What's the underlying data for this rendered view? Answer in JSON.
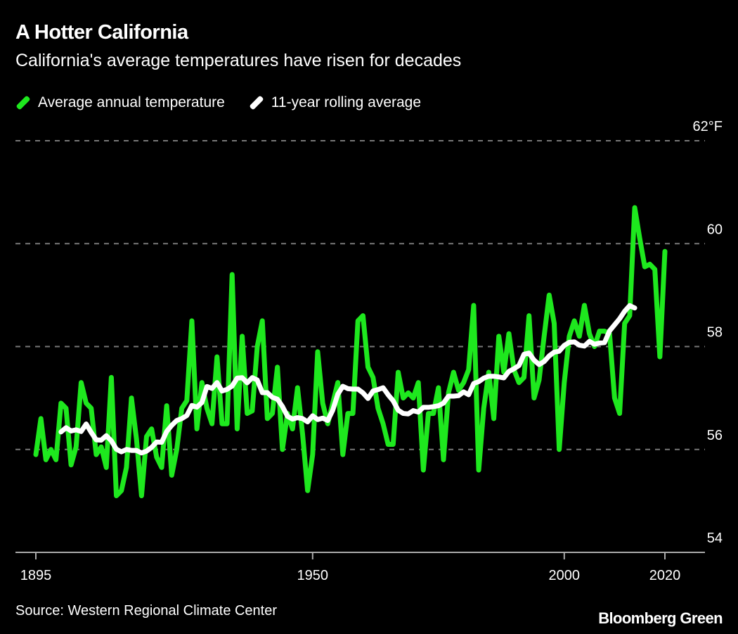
{
  "title": "A Hotter California",
  "subtitle": "California's average temperatures have risen for decades",
  "source": "Source: Western Regional Climate Center",
  "brand": "Bloomberg Green",
  "colors": {
    "annual": "#1ee81e",
    "rolling": "#ffffff",
    "grid": "#777777",
    "background": "#000000"
  },
  "chart_data": {
    "type": "line",
    "title": "A Hotter California",
    "xlabel": "",
    "ylabel": "°F",
    "xlim": [
      1895,
      2020
    ],
    "ylim": [
      54,
      62
    ],
    "x_ticks": [
      {
        "value": 1895,
        "label": "1895"
      },
      {
        "value": 1950,
        "label": "1950"
      },
      {
        "value": 2000,
        "label": "2000"
      },
      {
        "value": 2020,
        "label": "2020"
      }
    ],
    "y_ticks": [
      {
        "value": 62,
        "label": "62°F"
      },
      {
        "value": 60,
        "label": "60"
      },
      {
        "value": 58,
        "label": "58"
      },
      {
        "value": 56,
        "label": "56"
      },
      {
        "value": 54,
        "label": "54"
      }
    ],
    "grid": true,
    "legend_position": "top-left",
    "series": [
      {
        "name": "Average annual temperature",
        "start_year": 1895,
        "values": [
          55.9,
          56.6,
          55.8,
          56.0,
          55.8,
          56.9,
          56.8,
          55.7,
          56.05,
          57.3,
          56.9,
          56.8,
          55.9,
          56.05,
          55.65,
          57.4,
          55.1,
          55.2,
          55.65,
          57.0,
          56.2,
          55.1,
          56.25,
          56.4,
          55.85,
          55.65,
          56.85,
          55.5,
          56.0,
          56.8,
          56.95,
          58.5,
          56.4,
          57.3,
          56.8,
          56.5,
          57.8,
          56.5,
          56.5,
          59.4,
          56.4,
          58.2,
          56.7,
          56.75,
          58.0,
          58.5,
          56.6,
          56.7,
          57.6,
          56.0,
          56.7,
          56.4,
          57.2,
          56.3,
          55.2,
          55.9,
          57.9,
          56.9,
          56.5,
          56.9,
          57.3,
          55.9,
          56.7,
          56.7,
          58.5,
          58.6,
          57.6,
          57.4,
          56.8,
          56.5,
          56.1,
          56.1,
          57.5,
          57.0,
          57.1,
          57.0,
          57.3,
          55.6,
          56.7,
          56.7,
          57.2,
          55.8,
          57.1,
          57.5,
          57.15,
          57.3,
          57.55,
          58.8,
          55.6,
          56.8,
          57.5,
          56.6,
          58.2,
          57.5,
          58.25,
          57.55,
          57.3,
          57.4,
          58.6,
          57.0,
          57.35,
          58.2,
          59.0,
          58.45,
          56.0,
          57.3,
          58.2,
          58.5,
          58.2,
          58.8,
          58.25,
          58.0,
          58.3,
          58.3,
          58.25,
          57.0,
          56.7,
          58.45,
          58.6,
          60.7,
          60.1,
          59.55,
          59.6,
          59.5,
          57.8,
          59.85
        ]
      },
      {
        "name": "11-year rolling average",
        "window": 11,
        "start_year": 1900,
        "end_year": 2014
      }
    ]
  }
}
